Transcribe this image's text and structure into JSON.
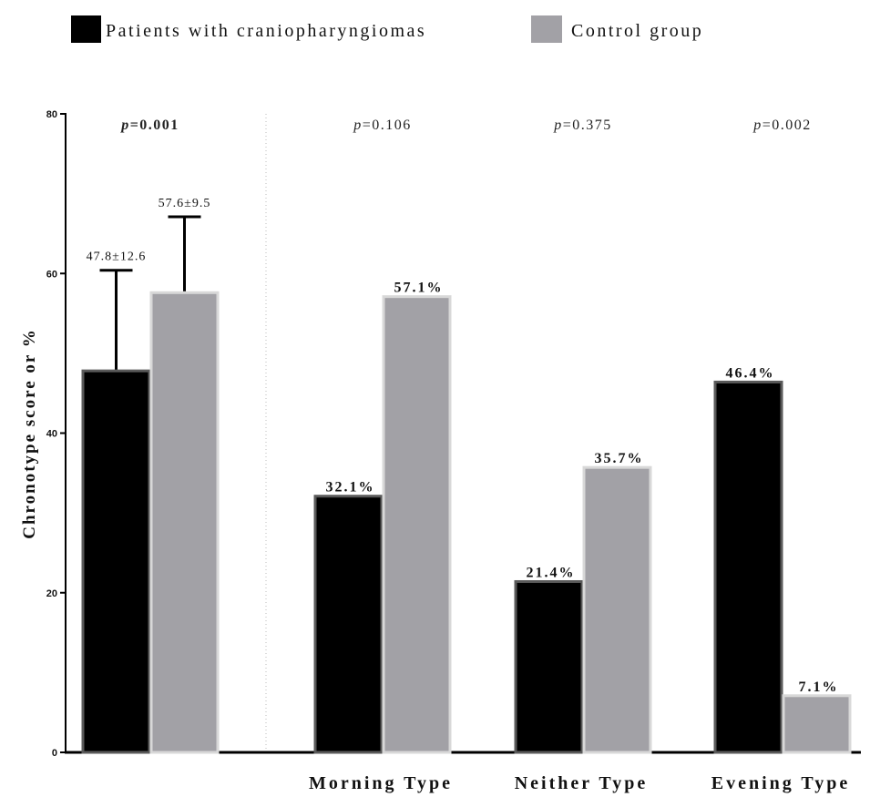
{
  "chart_data": {
    "type": "bar",
    "ylabel": "Chronotype score or %",
    "ylim": [
      0,
      80
    ],
    "yticks": [
      0,
      20,
      40,
      60,
      80
    ],
    "legend_position": "top-left",
    "series": [
      {
        "name": "Patients with craniopharyngiomas",
        "color": "#000000",
        "values": [
          47.8,
          32.1,
          21.4,
          46.4
        ]
      },
      {
        "name": "Control group",
        "color": "#a2a1a6",
        "values": [
          57.6,
          57.1,
          35.7,
          7.1
        ]
      }
    ],
    "categories": [
      "",
      "Morning Type",
      "Neither Type",
      "Evening Type"
    ],
    "error_bars": {
      "patients": [
        12.6,
        null,
        null,
        null
      ],
      "control": [
        9.5,
        null,
        null,
        null
      ]
    },
    "bar_labels": {
      "patients": [
        "47.8±12.6",
        "32.1%",
        "21.4%",
        "46.4%"
      ],
      "control": [
        "57.6±9.5",
        "57.1%",
        "35.7%",
        "7.1%"
      ]
    },
    "p_values": [
      {
        "prefix": "p",
        "value": "=0.001",
        "bold": true
      },
      {
        "prefix": "p",
        "value": "=0.106",
        "bold": false
      },
      {
        "prefix": "p",
        "value": "=0.375",
        "bold": false
      },
      {
        "prefix": "p",
        "value": "=0.002",
        "bold": false
      }
    ]
  }
}
